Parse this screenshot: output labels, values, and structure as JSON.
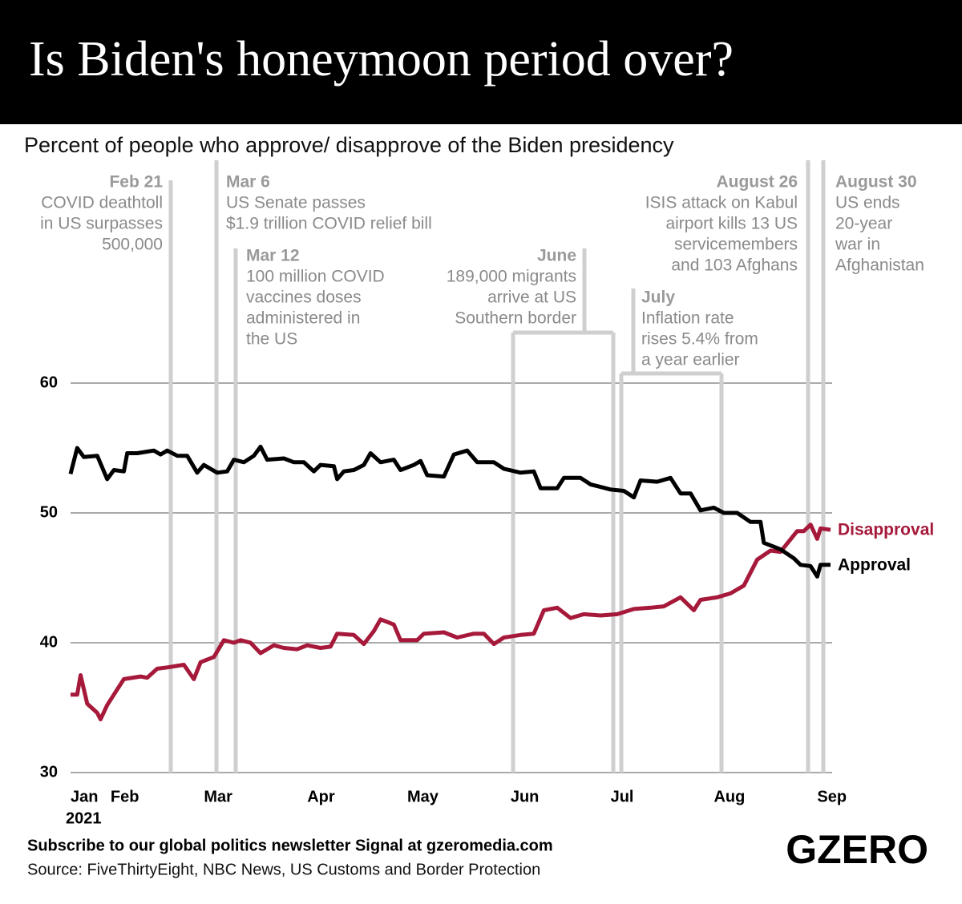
{
  "chart_data": {
    "type": "line",
    "title": "Is Biden's honeymoon period over?",
    "subtitle": "Percent of people who approve/ disapprove of the Biden presidency",
    "xlabel": "2021",
    "xlim": [
      20,
      248
    ],
    "xticks": [
      {
        "value": 20,
        "label": "Jan"
      },
      {
        "value": 32,
        "label": "Feb"
      },
      {
        "value": 60,
        "label": "Mar"
      },
      {
        "value": 91,
        "label": "Apr"
      },
      {
        "value": 121,
        "label": "May"
      },
      {
        "value": 152,
        "label": "Jun"
      },
      {
        "value": 182,
        "label": "Jul"
      },
      {
        "value": 213,
        "label": "Aug"
      },
      {
        "value": 244,
        "label": "Sep"
      }
    ],
    "ylim": [
      30,
      60
    ],
    "yticks": [
      30,
      40,
      50,
      60
    ],
    "grid": true,
    "series": [
      {
        "name": "Disapproval",
        "color": "#a6193a",
        "x": [
          20,
          22,
          23,
          25,
          28,
          29,
          31,
          34,
          36,
          41,
          43,
          46,
          49,
          54,
          57,
          59,
          63,
          66,
          69,
          71,
          74,
          77,
          81,
          84,
          88,
          91,
          95,
          98,
          100,
          105,
          108,
          111,
          113,
          117,
          119,
          124,
          126,
          132,
          136,
          141,
          144,
          147,
          150,
          155,
          159,
          162,
          166,
          170,
          174,
          179,
          184,
          189,
          194,
          198,
          203,
          207,
          209,
          214,
          218,
          222,
          226,
          230,
          233,
          238,
          240,
          242,
          244,
          245,
          248
        ],
        "values": [
          36.0,
          36.0,
          37.5,
          35.3,
          34.6,
          34.1,
          35.2,
          36.4,
          37.2,
          37.4,
          37.3,
          38.0,
          38.1,
          38.3,
          37.2,
          38.5,
          38.9,
          40.2,
          40.0,
          40.2,
          40.0,
          39.2,
          39.8,
          39.6,
          39.5,
          39.8,
          39.6,
          39.7,
          40.7,
          40.6,
          39.9,
          40.9,
          41.8,
          41.4,
          40.2,
          40.2,
          40.7,
          40.8,
          40.4,
          40.7,
          40.7,
          39.9,
          40.4,
          40.6,
          40.7,
          42.5,
          42.7,
          41.9,
          42.2,
          42.1,
          42.2,
          42.6,
          42.7,
          42.8,
          43.5,
          42.5,
          43.3,
          43.5,
          43.8,
          44.4,
          46.4,
          47.1,
          47.0,
          48.6,
          48.6,
          49.1,
          48.0,
          48.8,
          48.7
        ]
      },
      {
        "name": "Approval",
        "color": "#000000",
        "x": [
          20,
          22,
          24,
          28,
          30,
          31,
          33,
          36,
          37,
          40,
          45,
          47,
          49,
          52,
          55,
          58,
          60,
          64,
          67,
          69,
          72,
          75,
          77,
          79,
          84,
          87,
          90,
          93,
          95,
          99,
          100,
          102,
          105,
          108,
          110,
          113,
          117,
          119,
          123,
          125,
          127,
          132,
          135,
          139,
          142,
          147,
          150,
          155,
          159,
          161,
          166,
          168,
          173,
          176,
          179,
          182,
          186,
          189,
          191,
          196,
          200,
          203,
          206,
          209,
          213,
          216,
          220,
          224,
          227,
          228,
          233,
          237,
          239,
          242,
          244,
          245,
          248
        ],
        "values": [
          53.0,
          55.0,
          54.3,
          54.4,
          53.2,
          52.6,
          53.3,
          53.2,
          54.6,
          54.6,
          54.8,
          54.5,
          54.8,
          54.4,
          54.4,
          53.1,
          53.7,
          53.1,
          53.2,
          54.1,
          53.9,
          54.4,
          55.1,
          54.1,
          54.2,
          53.9,
          53.9,
          53.2,
          53.7,
          53.6,
          52.6,
          53.2,
          53.3,
          53.7,
          54.6,
          53.9,
          54.1,
          53.3,
          53.7,
          54.0,
          52.9,
          52.8,
          54.5,
          54.8,
          53.9,
          53.9,
          53.4,
          53.1,
          53.2,
          51.9,
          51.9,
          52.7,
          52.7,
          52.2,
          52.0,
          51.8,
          51.7,
          51.2,
          52.5,
          52.4,
          52.7,
          51.5,
          51.5,
          50.2,
          50.4,
          50.0,
          50.0,
          49.3,
          49.3,
          47.7,
          47.2,
          46.5,
          46.0,
          45.9,
          45.1,
          46.0,
          46.0
        ]
      }
    ],
    "annotations": [
      {
        "date": "Feb 21",
        "lines": [
          "COVID deathtoll",
          "in US surpasses",
          "500,000"
        ]
      },
      {
        "date": "Mar 6",
        "lines": [
          "US Senate passes",
          "$1.9 trillion COVID relief bill"
        ]
      },
      {
        "date": "Mar 12",
        "lines": [
          "100 million COVID",
          "vaccines doses",
          "administered in",
          "the US"
        ]
      },
      {
        "date": "June",
        "lines": [
          "189,000 migrants",
          "arrive at US",
          "Southern border"
        ]
      },
      {
        "date": "July",
        "lines": [
          "Inflation rate",
          "rises 5.4% from",
          "a year earlier"
        ]
      },
      {
        "date": "August 26",
        "lines": [
          "ISIS attack on Kabul",
          "airport kills 13 US",
          "servicemembers",
          "and 103 Afghans"
        ]
      },
      {
        "date": "August 30",
        "lines": [
          "US ends",
          "20-year",
          "war in",
          "Afghanistan"
        ]
      }
    ],
    "footer": "Subscribe to our global politics newsletter Signal at gzeromedia.com",
    "source": "Source: FiveThirtyEight, NBC News, US Customs and Border Protection",
    "logo": "GZERO"
  }
}
